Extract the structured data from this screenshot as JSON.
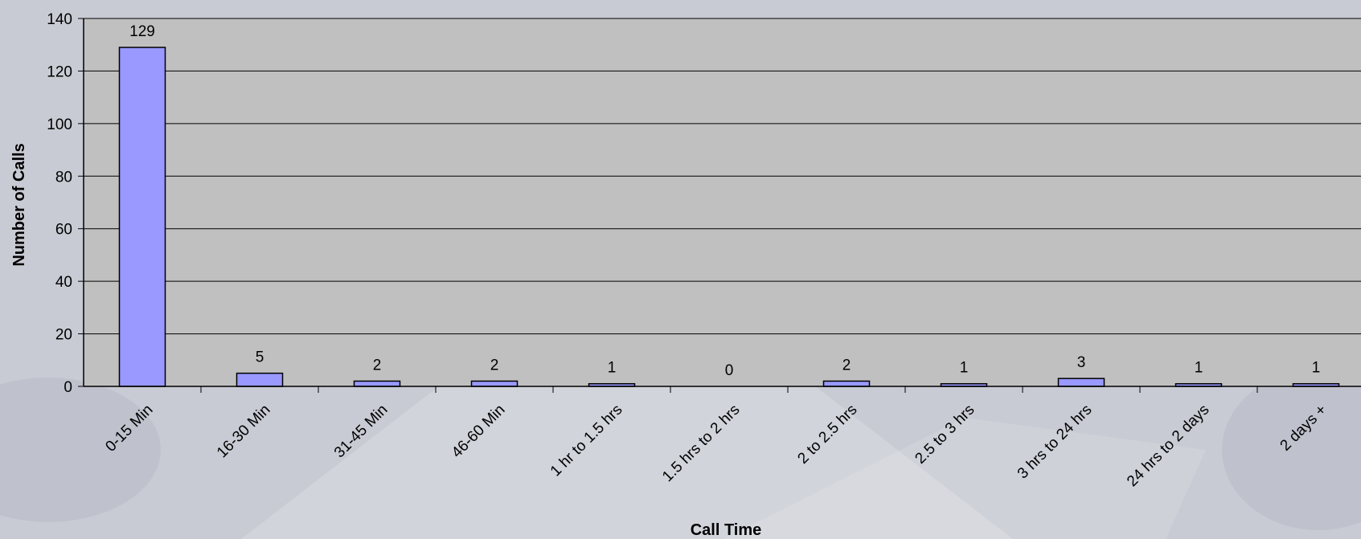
{
  "chart_data": {
    "type": "bar",
    "title": "",
    "xlabel": "Call Time",
    "ylabel": "Number of Calls",
    "categories": [
      "0-15 Min",
      "16-30 Min",
      "31-45 Min",
      "46-60 Min",
      "1 hr to 1.5 hrs",
      "1.5 hrs to 2 hrs",
      "2 to 2.5 hrs",
      "2.5 to 3 hrs",
      "3 hrs to 24 hrs",
      "24 hrs to 2 days",
      "2 days +"
    ],
    "values": [
      129,
      5,
      2,
      2,
      1,
      0,
      2,
      1,
      3,
      1,
      1
    ],
    "ylim": [
      0,
      140
    ],
    "yticks": [
      0,
      20,
      40,
      60,
      80,
      100,
      120,
      140
    ],
    "grid": true,
    "legend": "none",
    "colors": {
      "bar_fill": "#9999ff",
      "bar_stroke": "#000000",
      "plot_background": "#c0c0c0",
      "page_background": "#c9cbd4",
      "gridline": "#000000"
    }
  }
}
